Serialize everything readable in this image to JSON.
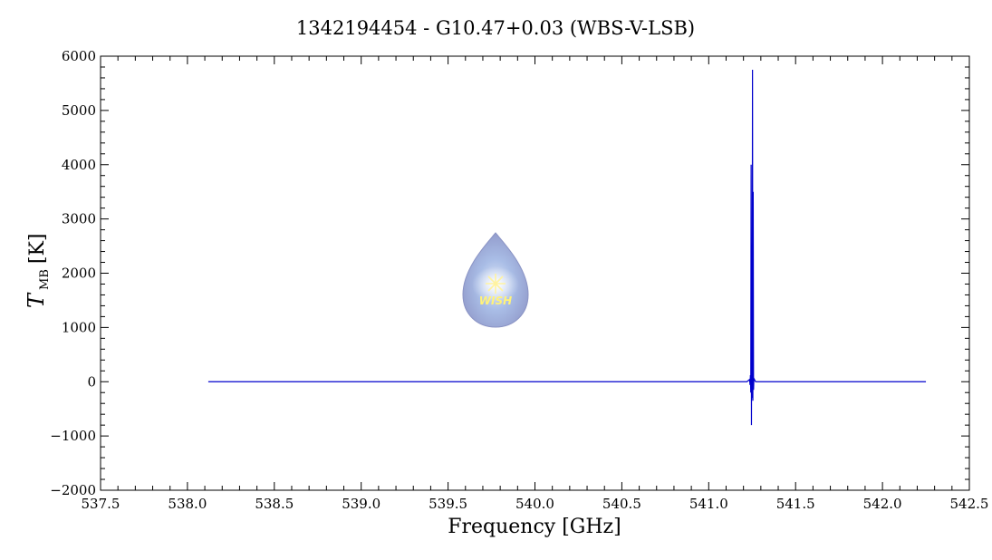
{
  "chart_data": {
    "type": "line",
    "title": "1342194454 - G10.47+0.03 (WBS-V-LSB)",
    "xlabel": "Frequency [GHz]",
    "ylabel": {
      "main": "T",
      "sub": "MB",
      "unit": "[K]"
    },
    "xlim": [
      537.5,
      542.5
    ],
    "ylim": [
      -2000,
      6000
    ],
    "x_ticks": [
      537.5,
      538.0,
      538.5,
      539.0,
      539.5,
      540.0,
      540.5,
      541.0,
      541.5,
      542.0,
      542.5
    ],
    "x_tick_labels": [
      "537.5",
      "538.0",
      "538.5",
      "539.0",
      "539.5",
      "540.0",
      "540.5",
      "541.0",
      "541.5",
      "542.0",
      "542.5"
    ],
    "y_ticks": [
      -2000,
      -1000,
      0,
      1000,
      2000,
      3000,
      4000,
      5000,
      6000
    ],
    "y_tick_labels": [
      "−2000",
      "−1000",
      "0",
      "1000",
      "2000",
      "3000",
      "4000",
      "5000",
      "6000"
    ],
    "grid": false,
    "series": [
      {
        "color": "#0000cc",
        "x": [
          538.12,
          541.22,
          541.235,
          541.238,
          541.24,
          541.242,
          541.244,
          541.246,
          541.248,
          541.25,
          541.252,
          541.254,
          541.256,
          541.258,
          541.26,
          541.27,
          542.25
        ],
        "y": [
          0,
          0,
          40,
          -60,
          120,
          -200,
          4000,
          -800,
          2500,
          -300,
          5750,
          -350,
          3500,
          -150,
          60,
          0,
          0
        ]
      }
    ],
    "logo": {
      "text": "WISH"
    }
  }
}
